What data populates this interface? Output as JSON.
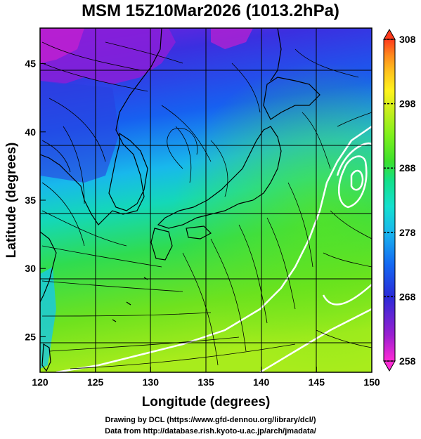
{
  "title": "MSM 15Z10Mar2026 (1013.2hPa)",
  "axes": {
    "xlabel": "Longitude (degrees)",
    "ylabel": "Latitude (degrees)",
    "xticks": [
      120,
      125,
      130,
      135,
      140,
      145,
      150
    ],
    "yticks": [
      25,
      30,
      35,
      40,
      45
    ],
    "xlim": [
      120,
      150
    ],
    "ylim": [
      22.4,
      47.6
    ]
  },
  "colorbar": {
    "ticks": [
      258,
      268,
      278,
      288,
      298,
      308
    ],
    "range": [
      258,
      308
    ],
    "colors": [
      "#ff2bd6",
      "#9b1fd0",
      "#2a2bd8",
      "#1468f2",
      "#19b6ee",
      "#14e0cf",
      "#13e08a",
      "#3ce02c",
      "#7df01c",
      "#c9ee1c",
      "#fff31c",
      "#ffc21c",
      "#ff8a1c",
      "#ff3b1c"
    ]
  },
  "credits": [
    "Drawing by DCL (https://www.gfd-dennou.org/library/dcl/)",
    "Data from http://database.rish.kyoto-u.ac.jp/arch/jmadata/"
  ]
}
